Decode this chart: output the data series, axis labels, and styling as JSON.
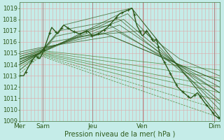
{
  "xlabel_bottom": "Pression niveau de la mer( hPa )",
  "xtick_labels": [
    "Mer",
    "Sam",
    "Jeu",
    "Ven",
    "Dim"
  ],
  "xtick_positions": [
    0.0,
    0.115,
    0.365,
    0.615,
    0.975
  ],
  "ylim": [
    1009,
    1019.5
  ],
  "yticks": [
    1009,
    1010,
    1011,
    1012,
    1013,
    1014,
    1015,
    1016,
    1017,
    1018,
    1019
  ],
  "bg_color": "#c5ece8",
  "grid_v_color": "#dda8a8",
  "grid_h_color": "#dda8a8",
  "line_dark": "#2d5a1b",
  "line_med": "#3a7a22"
}
